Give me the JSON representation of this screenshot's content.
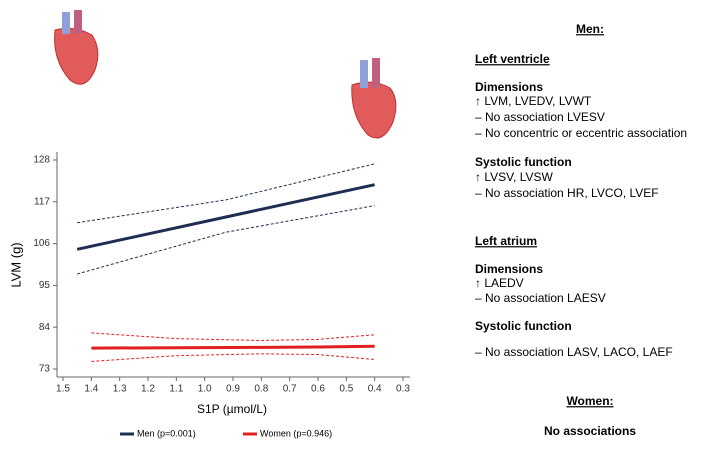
{
  "chart_data": {
    "type": "line",
    "xlabel": "S1P (µmol/L)",
    "ylabel": "LVM (g)",
    "xlim": [
      1.5,
      0.3
    ],
    "xticks": [
      1.5,
      1.4,
      1.3,
      1.2,
      1.1,
      {
        "value": 1.0,
        "label": "1.0"
      },
      0.9,
      0.8,
      0.7,
      0.6,
      0.5,
      0.4,
      0.3
    ],
    "ylim": [
      73,
      128
    ],
    "yticks": [
      73,
      84,
      95,
      106,
      117,
      128
    ],
    "series": [
      {
        "name": "Men (p=0.001)",
        "color": "#1f2d52",
        "x": [
          1.45,
          0.925,
          0.4
        ],
        "values": [
          104.5,
          113,
          121.5
        ],
        "upper": [
          111.5,
          117.5,
          127
        ],
        "lower": [
          98,
          109,
          116
        ]
      },
      {
        "name": "Women (p=0.946)",
        "color": "#e02020",
        "x": [
          1.4,
          1.1,
          0.8,
          0.6,
          0.4
        ],
        "values": [
          78.5,
          78.6,
          78.7,
          78.8,
          79
        ],
        "upper": [
          82.5,
          81,
          80.5,
          80.8,
          82
        ],
        "lower": [
          75,
          76.5,
          77,
          76.8,
          75.5
        ]
      }
    ]
  },
  "panel": {
    "men_heading": "Men:",
    "sections": [
      {
        "heading": "Left ventricle",
        "groups": [
          {
            "title": "Dimensions",
            "items": [
              "↑ LVM, LVEDV, LVWT",
              "– No association LVESV",
              "– No concentric or eccentric association"
            ]
          },
          {
            "title": "Systolic function",
            "items": [
              "↑ LVSV, LVSW",
              "– No association HR, LVCO, LVEF"
            ]
          }
        ]
      },
      {
        "heading": "Left atrium",
        "groups": [
          {
            "title": "Dimensions",
            "items": [
              "↑ LAEDV",
              "– No association LAESV"
            ]
          },
          {
            "title": "Systolic function",
            "items": [
              "– No association LASV, LACO, LAEF"
            ]
          }
        ]
      }
    ],
    "women_heading": "Women:",
    "women_text": "No associations"
  }
}
